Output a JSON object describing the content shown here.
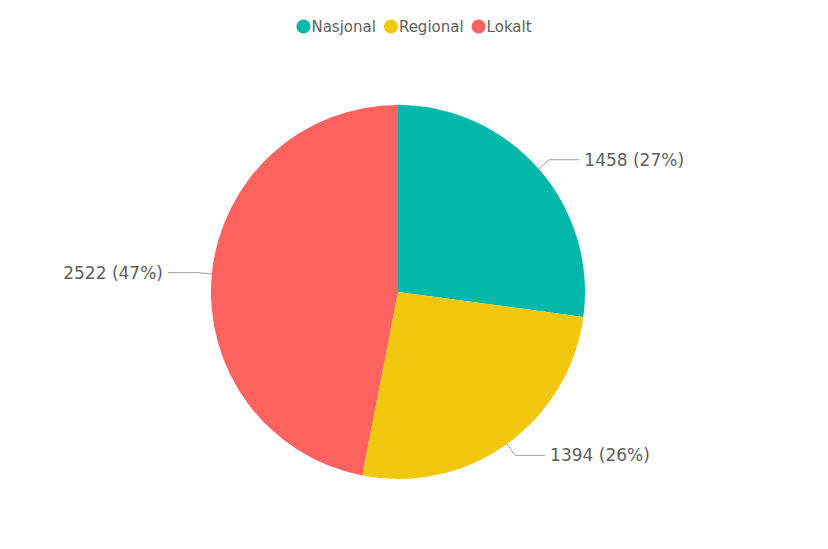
{
  "chart_data": {
    "type": "pie",
    "categories": [
      "Nasjonal",
      "Regional",
      "Lokalt"
    ],
    "values": [
      1458,
      1394,
      2522
    ],
    "value_labels": [
      "1458 (27%)",
      "1394 (26%)",
      "2522 (47%)"
    ],
    "colors": [
      "#01b8aa",
      "#f2c80f",
      "#fd625e"
    ],
    "legend": "top",
    "data_labels": true
  }
}
